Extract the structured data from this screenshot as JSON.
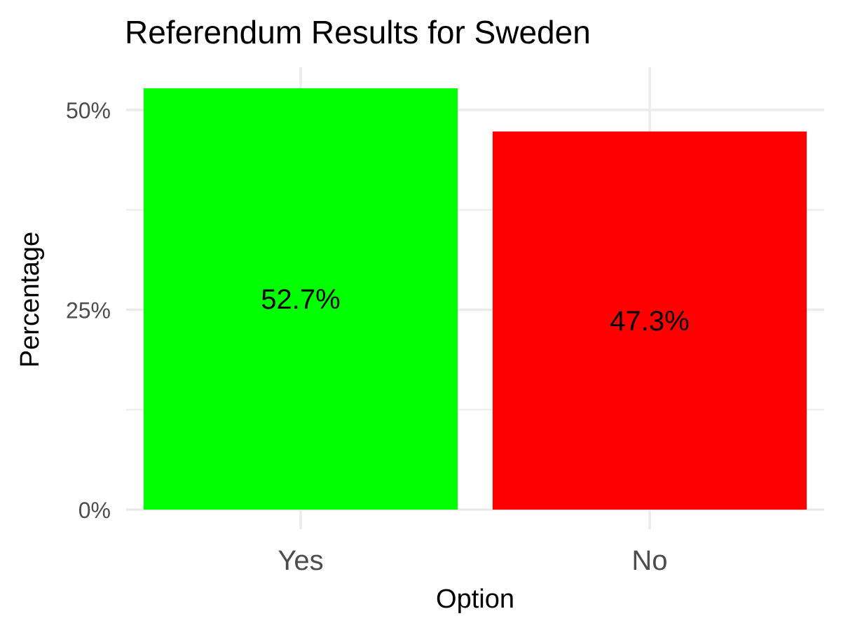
{
  "chart_data": {
    "type": "bar",
    "title": "Referendum Results for Sweden",
    "xlabel": "Option",
    "ylabel": "Percentage",
    "categories": [
      "Yes",
      "No"
    ],
    "values": [
      52.7,
      47.3
    ],
    "data_labels": [
      "52.7%",
      "47.3%"
    ],
    "colors": [
      "#00ff00",
      "#ff0000"
    ],
    "yticks": [
      0,
      25,
      50
    ],
    "ytick_labels": [
      "0%",
      "25%",
      "50%"
    ],
    "ylim": [
      0,
      55.3
    ],
    "grid": true,
    "legend": "none"
  }
}
